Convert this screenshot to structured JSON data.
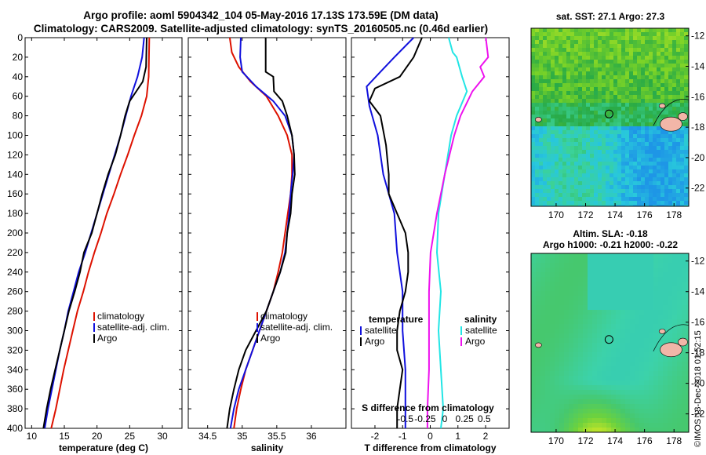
{
  "title_line1": "Argo profile: aoml 5904342_104 05-May-2016 17.13S 173.59E (DM data)",
  "title_line2": "Climatology: CARS2009. Satellite-adjusted climatology: synTS_20160505.nc (0.46d earlier)",
  "credit": "©IMOS 13-Dec-2018 01:52:15",
  "colors": {
    "climatology": "#dd1100",
    "satellite": "#1010dd",
    "argo": "#000000",
    "sal_satellite": "#22e5e5",
    "sal_argo": "#ee11ee"
  },
  "chart_data": [
    {
      "name": "temperature",
      "type": "line",
      "xlabel": "temperature (deg C)",
      "ylabel": "",
      "xlim": [
        9,
        33
      ],
      "ylim": [
        0,
        400
      ],
      "xticks": [
        10,
        15,
        20,
        25,
        30
      ],
      "yticks": [
        0,
        20,
        40,
        60,
        80,
        100,
        120,
        140,
        160,
        180,
        200,
        220,
        240,
        260,
        280,
        300,
        320,
        340,
        360,
        380,
        400
      ],
      "legend": [
        "climatology",
        "satellite-adj. clim.",
        "Argo"
      ],
      "series": [
        {
          "name": "climatology",
          "color": "#dd1100",
          "points": [
            [
              28.0,
              0
            ],
            [
              27.9,
              40
            ],
            [
              27.6,
              60
            ],
            [
              26.8,
              80
            ],
            [
              25.7,
              100
            ],
            [
              24.7,
              120
            ],
            [
              23.6,
              140
            ],
            [
              22.6,
              160
            ],
            [
              21.5,
              180
            ],
            [
              20.6,
              200
            ],
            [
              19.6,
              220
            ],
            [
              18.7,
              240
            ],
            [
              17.9,
              260
            ],
            [
              17.0,
              280
            ],
            [
              16.3,
              300
            ],
            [
              15.6,
              320
            ],
            [
              14.9,
              340
            ],
            [
              14.3,
              360
            ],
            [
              13.7,
              380
            ],
            [
              13.0,
              400
            ]
          ]
        },
        {
          "name": "satellite-adj. clim.",
          "color": "#1010dd",
          "points": [
            [
              27.2,
              0
            ],
            [
              26.9,
              20
            ],
            [
              26.2,
              40
            ],
            [
              25.2,
              60
            ],
            [
              24.4,
              80
            ],
            [
              23.6,
              100
            ],
            [
              22.7,
              120
            ],
            [
              21.8,
              140
            ],
            [
              20.9,
              160
            ],
            [
              20.0,
              180
            ],
            [
              19.1,
              200
            ],
            [
              18.2,
              220
            ],
            [
              17.2,
              240
            ],
            [
              16.4,
              260
            ],
            [
              15.6,
              280
            ],
            [
              15.0,
              300
            ],
            [
              14.3,
              320
            ],
            [
              13.7,
              340
            ],
            [
              13.1,
              360
            ],
            [
              12.5,
              380
            ],
            [
              12.0,
              400
            ]
          ]
        },
        {
          "name": "Argo",
          "color": "#000000",
          "points": [
            [
              27.6,
              0
            ],
            [
              27.5,
              30
            ],
            [
              27.0,
              45
            ],
            [
              26.0,
              55
            ],
            [
              25.0,
              65
            ],
            [
              24.3,
              80
            ],
            [
              23.6,
              100
            ],
            [
              22.8,
              120
            ],
            [
              21.7,
              140
            ],
            [
              20.8,
              160
            ],
            [
              20.0,
              180
            ],
            [
              19.2,
              200
            ],
            [
              18.0,
              220
            ],
            [
              17.4,
              240
            ],
            [
              16.6,
              260
            ],
            [
              15.7,
              280
            ],
            [
              15.0,
              300
            ],
            [
              14.3,
              320
            ],
            [
              13.6,
              340
            ],
            [
              12.9,
              360
            ],
            [
              12.3,
              380
            ],
            [
              11.8,
              400
            ]
          ]
        }
      ]
    },
    {
      "name": "salinity",
      "type": "line",
      "xlabel": "salinity",
      "ylabel": "",
      "xlim": [
        34.22,
        36.5
      ],
      "ylim": [
        0,
        400
      ],
      "xticks": [
        34.5,
        35,
        35.5,
        36
      ],
      "legend": [
        "climatology",
        "satellite-adj. clim.",
        "Argo"
      ],
      "series": [
        {
          "name": "climatology",
          "color": "#dd1100",
          "points": [
            [
              34.82,
              0
            ],
            [
              34.85,
              15
            ],
            [
              34.95,
              30
            ],
            [
              35.12,
              45
            ],
            [
              35.35,
              60
            ],
            [
              35.52,
              80
            ],
            [
              35.65,
              100
            ],
            [
              35.72,
              120
            ],
            [
              35.72,
              140
            ],
            [
              35.7,
              160
            ],
            [
              35.66,
              180
            ],
            [
              35.62,
              200
            ],
            [
              35.58,
              220
            ],
            [
              35.52,
              240
            ],
            [
              35.45,
              260
            ],
            [
              35.35,
              280
            ],
            [
              35.25,
              300
            ],
            [
              35.15,
              320
            ],
            [
              35.05,
              340
            ],
            [
              34.98,
              360
            ],
            [
              34.92,
              380
            ],
            [
              34.88,
              400
            ]
          ]
        },
        {
          "name": "satellite-adj. clim.",
          "color": "#1010dd",
          "points": [
            [
              34.98,
              0
            ],
            [
              34.97,
              20
            ],
            [
              35.0,
              35
            ],
            [
              35.2,
              50
            ],
            [
              35.45,
              65
            ],
            [
              35.62,
              80
            ],
            [
              35.72,
              100
            ],
            [
              35.75,
              120
            ],
            [
              35.73,
              140
            ],
            [
              35.7,
              160
            ],
            [
              35.68,
              180
            ],
            [
              35.65,
              200
            ],
            [
              35.62,
              220
            ],
            [
              35.55,
              240
            ],
            [
              35.45,
              260
            ],
            [
              35.35,
              280
            ],
            [
              35.25,
              300
            ],
            [
              35.15,
              320
            ],
            [
              35.05,
              340
            ],
            [
              34.95,
              360
            ],
            [
              34.88,
              380
            ],
            [
              34.83,
              400
            ]
          ]
        },
        {
          "name": "Argo",
          "color": "#000000",
          "points": [
            [
              35.34,
              0
            ],
            [
              35.34,
              35
            ],
            [
              35.45,
              40
            ],
            [
              35.46,
              55
            ],
            [
              35.58,
              65
            ],
            [
              35.65,
              80
            ],
            [
              35.72,
              100
            ],
            [
              35.75,
              120
            ],
            [
              35.76,
              140
            ],
            [
              35.72,
              160
            ],
            [
              35.7,
              180
            ],
            [
              35.65,
              200
            ],
            [
              35.63,
              220
            ],
            [
              35.55,
              240
            ],
            [
              35.45,
              260
            ],
            [
              35.35,
              280
            ],
            [
              35.2,
              300
            ],
            [
              35.05,
              320
            ],
            [
              34.95,
              340
            ],
            [
              34.88,
              360
            ],
            [
              34.82,
              380
            ],
            [
              34.78,
              400
            ]
          ]
        }
      ]
    },
    {
      "name": "difference",
      "type": "line",
      "xlabel": "T difference from climatology",
      "xlabel_top": "S difference from climatology",
      "xlim": [
        -2.85,
        2.85
      ],
      "ylim": [
        0,
        400
      ],
      "xticks": [
        -2,
        -1,
        0,
        1,
        2
      ],
      "xtick_labels": [
        "-2",
        "-1",
        "0",
        "1",
        "2"
      ],
      "sticks": [
        -0.5,
        -0.25,
        0,
        0.25,
        0.5
      ],
      "stick_labels": [
        "-0.5",
        "-0.25",
        "0",
        "0.25",
        "0.5"
      ],
      "legend_temperature_title": "temperature",
      "legend_salinity_title": "salinity",
      "legend_temperature": [
        "satellite",
        "Argo"
      ],
      "legend_salinity": [
        "satellite",
        "Argo"
      ],
      "series": [
        {
          "name": "T satellite",
          "color": "#1010dd",
          "points": [
            [
              -0.6,
              0
            ],
            [
              -1.3,
              20
            ],
            [
              -1.8,
              35
            ],
            [
              -2.3,
              50
            ],
            [
              -2.2,
              70
            ],
            [
              -1.9,
              100
            ],
            [
              -1.7,
              140
            ],
            [
              -1.3,
              180
            ],
            [
              -1.2,
              220
            ],
            [
              -1.0,
              260
            ],
            [
              -1.0,
              300
            ],
            [
              -0.9,
              340
            ],
            [
              -0.9,
              380
            ],
            [
              -0.9,
              400
            ]
          ]
        },
        {
          "name": "T Argo",
          "color": "#000000",
          "points": [
            [
              -0.3,
              0
            ],
            [
              -0.6,
              20
            ],
            [
              -1.1,
              40
            ],
            [
              -2.0,
              52
            ],
            [
              -2.2,
              65
            ],
            [
              -1.8,
              80
            ],
            [
              -1.6,
              110
            ],
            [
              -1.5,
              140
            ],
            [
              -1.5,
              160
            ],
            [
              -1.2,
              180
            ],
            [
              -0.9,
              200
            ],
            [
              -0.8,
              220
            ],
            [
              -0.8,
              240
            ],
            [
              -0.9,
              260
            ],
            [
              -1.1,
              280
            ],
            [
              -1.2,
              300
            ],
            [
              -1.2,
              320
            ],
            [
              -1.0,
              340
            ],
            [
              -1.1,
              360
            ],
            [
              -1.2,
              380
            ],
            [
              -1.2,
              400
            ]
          ]
        },
        {
          "name": "S satellite",
          "color": "#22e5e5",
          "points": [
            [
              0.05,
              0
            ],
            [
              0.1,
              15
            ],
            [
              0.15,
              20
            ],
            [
              0.22,
              40
            ],
            [
              0.28,
              55
            ],
            [
              0.15,
              80
            ],
            [
              0.08,
              100
            ],
            [
              0.0,
              140
            ],
            [
              -0.08,
              180
            ],
            [
              -0.1,
              220
            ],
            [
              -0.05,
              260
            ],
            [
              -0.08,
              300
            ],
            [
              -0.05,
              340
            ],
            [
              -0.02,
              380
            ],
            [
              -0.05,
              400
            ]
          ]
        },
        {
          "name": "S Argo",
          "color": "#ee11ee",
          "points": [
            [
              0.52,
              0
            ],
            [
              0.55,
              20
            ],
            [
              0.45,
              30
            ],
            [
              0.5,
              40
            ],
            [
              0.35,
              55
            ],
            [
              0.2,
              80
            ],
            [
              0.12,
              100
            ],
            [
              0.0,
              140
            ],
            [
              -0.1,
              180
            ],
            [
              -0.18,
              220
            ],
            [
              -0.2,
              260
            ],
            [
              -0.2,
              300
            ],
            [
              -0.2,
              340
            ],
            [
              -0.22,
              380
            ],
            [
              -0.22,
              400
            ]
          ]
        }
      ]
    },
    {
      "name": "sst_map",
      "type": "heatmap",
      "title": "sat. SST: 27.1  Argo: 27.3",
      "xticks": [
        170,
        172,
        174,
        176,
        178
      ],
      "yticks": [
        -12,
        -14,
        -16,
        -18,
        -20,
        -22
      ],
      "xlim": [
        168.3,
        179.0
      ],
      "ylim": [
        -23.2,
        -11.5
      ],
      "marker": [
        173.59,
        -17.13
      ]
    },
    {
      "name": "sla_map",
      "type": "heatmap",
      "title_line1": "Altim. SLA: -0.18",
      "title_line2": "Argo h1000: -0.21 h2000: -0.22",
      "xticks": [
        170,
        172,
        174,
        176,
        178
      ],
      "yticks": [
        -12,
        -14,
        -16,
        -18,
        -20,
        -22
      ],
      "xlim": [
        168.3,
        179.0
      ],
      "ylim": [
        -23.2,
        -11.5
      ],
      "marker": [
        173.59,
        -17.13
      ]
    }
  ]
}
